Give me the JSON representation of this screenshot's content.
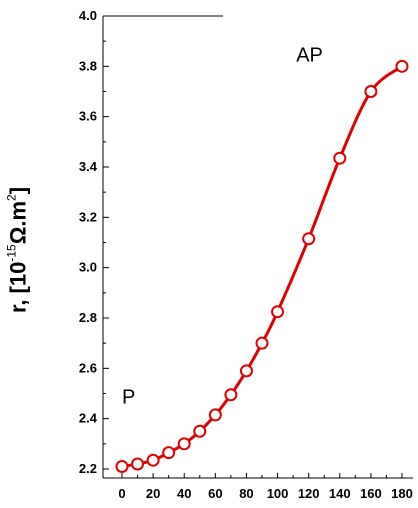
{
  "chart_data": {
    "type": "line",
    "title": "",
    "xlabel": "",
    "ylabel": {
      "prefix": "r, [10",
      "exponent": "-15",
      "suffix": "Ω.m",
      "sup2": "2",
      "close": "]"
    },
    "xlim": [
      -5,
      185
    ],
    "ylim": [
      2.2,
      4.0
    ],
    "xticks": [
      0,
      20,
      40,
      60,
      80,
      100,
      120,
      140,
      160,
      180
    ],
    "xtick_labels": [
      "0",
      "20",
      "40",
      "60",
      "80",
      "100",
      "120",
      "140",
      "160",
      "180"
    ],
    "yticks": [
      2.2,
      2.4,
      2.6,
      2.8,
      3.0,
      3.2,
      3.4,
      3.6,
      3.8,
      4.0
    ],
    "ytick_labels": [
      "2.2",
      "2.4",
      "2.6",
      "2.8",
      "3.0",
      "3.2",
      "3.4",
      "3.6",
      "3.8",
      "4.0"
    ],
    "series": [
      {
        "color": "#e00000",
        "marker": "open-circle",
        "x": [
          0,
          10,
          20,
          30,
          40,
          50,
          60,
          70,
          80,
          90,
          100,
          120,
          140,
          160,
          180
        ],
        "y": [
          2.21,
          2.22,
          2.235,
          2.265,
          2.3,
          2.35,
          2.415,
          2.495,
          2.59,
          2.7,
          2.825,
          3.115,
          3.435,
          3.7,
          3.8
        ]
      }
    ],
    "annotations": [
      {
        "text": "AP",
        "x": 112,
        "y": 3.82
      },
      {
        "text": "P",
        "x": 0,
        "y": 2.46
      }
    ],
    "grid": false,
    "legend": "none"
  }
}
